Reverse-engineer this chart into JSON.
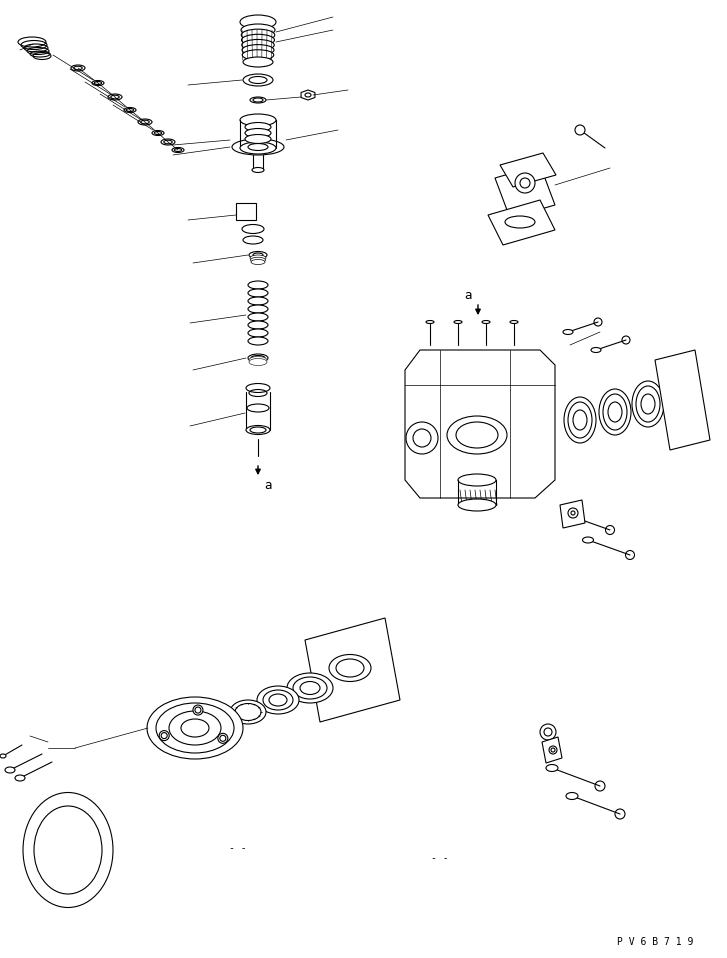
{
  "bg_color": "#ffffff",
  "line_color": "#000000",
  "fig_width": 7.27,
  "fig_height": 9.58,
  "dpi": 100,
  "watermark": "P V 6 B 7 1 9"
}
